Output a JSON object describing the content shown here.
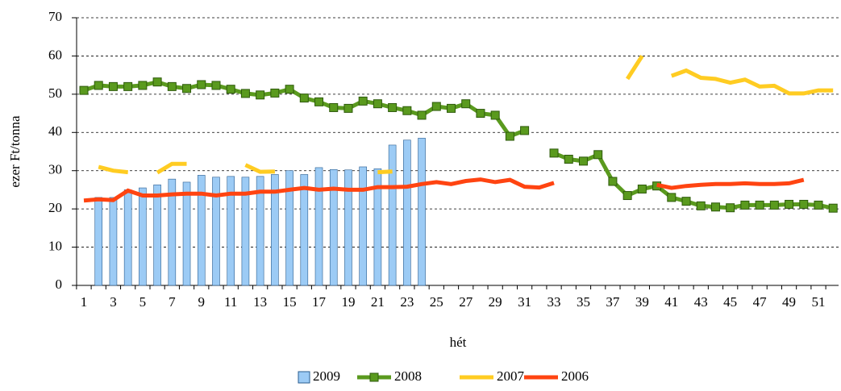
{
  "chart_data": {
    "type": "bar",
    "y_label": "ezer Ft/tonna",
    "x_label": "hét",
    "categories": [
      1,
      null,
      3,
      null,
      5,
      null,
      7,
      null,
      9,
      null,
      11,
      null,
      13,
      null,
      15,
      null,
      17,
      null,
      19,
      null,
      21,
      null,
      23,
      null,
      25,
      null,
      27,
      null,
      29,
      null,
      31,
      null,
      33,
      null,
      35,
      null,
      37,
      null,
      39,
      null,
      41,
      null,
      43,
      null,
      45,
      null,
      47,
      null,
      49,
      null,
      51,
      null
    ],
    "ylim": [
      0,
      70
    ],
    "yticks": [
      0,
      10,
      20,
      30,
      40,
      50,
      60,
      70
    ],
    "grid": true,
    "legend": "bottom",
    "series": [
      {
        "name": "2009",
        "type": "bar",
        "color": "#9ccbf5",
        "values": [
          null,
          23,
          23,
          25,
          25.5,
          26.3,
          27.8,
          27,
          28.8,
          28.3,
          28.5,
          28.3,
          28.5,
          29,
          30,
          29,
          30.8,
          30.3,
          30.2,
          31,
          30.5,
          36.7,
          38,
          38.5,
          null,
          null,
          null,
          null,
          null,
          null,
          null,
          null,
          null,
          null,
          null,
          null,
          null,
          null,
          null,
          null,
          null,
          null,
          null,
          null,
          null,
          null,
          null,
          null,
          null,
          null,
          null,
          null
        ]
      },
      {
        "name": "2008",
        "type": "line",
        "marker": "square",
        "color": "#5a9a1e",
        "values": [
          51,
          52.3,
          52,
          52,
          52.3,
          53.2,
          52,
          51.5,
          52.5,
          52.3,
          51.3,
          50.2,
          49.8,
          50.3,
          51.3,
          49,
          48,
          46.5,
          46.3,
          48.2,
          47.5,
          46.5,
          45.7,
          44.5,
          46.8,
          46.3,
          47.5,
          45,
          44.5,
          39,
          40.5,
          null,
          34.6,
          33,
          32.5,
          34.2,
          27.2,
          23.5,
          25.2,
          26,
          23,
          22,
          20.8,
          20.5,
          20.3,
          21,
          21,
          21,
          21.2,
          21.2,
          21,
          20.2
        ]
      },
      {
        "name": "2007",
        "type": "line",
        "color": "#ffcc22",
        "values": [
          null,
          31,
          30,
          29.6,
          null,
          29.5,
          31.8,
          31.8,
          null,
          null,
          null,
          31.5,
          29.7,
          29.8,
          null,
          null,
          null,
          null,
          null,
          null,
          29.6,
          29.8,
          null,
          null,
          null,
          null,
          null,
          null,
          null,
          null,
          null,
          null,
          null,
          null,
          null,
          null,
          null,
          54,
          60,
          null,
          54.8,
          56.2,
          54.3,
          54,
          53,
          53.8,
          52,
          52.2,
          50.2,
          50.2,
          51,
          51
        ]
      },
      {
        "name": "2006",
        "type": "line",
        "color": "#ff4411",
        "values": [
          22.2,
          22.5,
          22.3,
          24.8,
          23.5,
          23.5,
          23.8,
          24,
          24,
          23.5,
          24,
          24,
          24.5,
          24.5,
          25,
          25.5,
          25,
          25.3,
          25,
          25,
          25.7,
          25.7,
          25.8,
          26.5,
          27,
          26.5,
          27.3,
          27.7,
          27,
          27.6,
          25.8,
          25.6,
          26.8,
          null,
          null,
          null,
          null,
          null,
          null,
          26.3,
          25.5,
          26,
          26.3,
          26.5,
          26.5,
          26.7,
          26.5,
          26.5,
          26.7,
          27.6,
          null,
          null
        ]
      }
    ]
  }
}
